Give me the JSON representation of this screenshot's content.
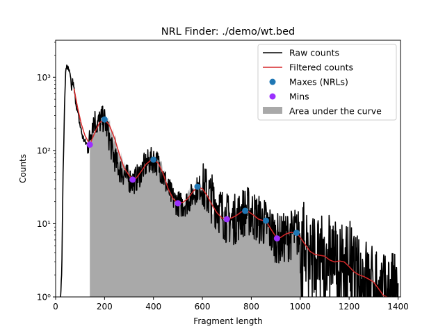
{
  "chart_data": {
    "type": "line",
    "title": "NRL Finder: ./demo/wt.bed",
    "xlabel": "Fragment length",
    "ylabel": "Counts",
    "xlim": [
      0,
      1410
    ],
    "ylim": [
      1,
      3200
    ],
    "yscale": "log",
    "grid": false,
    "legend_position": "top-right",
    "xticks": [
      0,
      200,
      400,
      600,
      800,
      1000,
      1200,
      1400
    ],
    "yticks": [
      {
        "value": 1,
        "label": "10⁰"
      },
      {
        "value": 10,
        "label": "10¹"
      },
      {
        "value": 100,
        "label": "10²"
      },
      {
        "value": 1000,
        "label": "10³"
      }
    ],
    "legend": [
      {
        "label": "Raw counts",
        "kind": "line",
        "color": "#000000"
      },
      {
        "label": "Filtered counts",
        "kind": "line",
        "color": "#d62728"
      },
      {
        "label": "Maxes (NRLs)",
        "kind": "marker",
        "color": "#1f77b4"
      },
      {
        "label": "Mins",
        "kind": "marker",
        "color": "#9b30ff"
      },
      {
        "label": "Area under the curve",
        "kind": "patch",
        "color": "#a9a9a9"
      }
    ],
    "raw_counts": {
      "name": "Raw counts",
      "color": "#000000",
      "x": [
        20,
        25,
        30,
        35,
        40,
        45,
        50,
        55,
        60,
        65,
        70,
        80,
        90,
        100,
        110,
        120,
        130,
        140,
        150,
        160,
        170,
        180,
        190,
        200,
        210,
        220,
        230,
        240,
        260,
        280,
        300,
        320,
        340,
        360,
        380,
        400,
        420,
        440,
        460,
        480,
        500,
        520,
        540,
        560,
        580,
        600,
        620,
        640,
        660,
        680,
        700,
        720,
        740,
        760,
        780,
        800,
        820,
        840,
        860,
        880,
        900,
        920,
        940,
        960,
        980,
        1000,
        1020,
        1040,
        1060,
        1080,
        1100,
        1120,
        1140,
        1160,
        1180,
        1200,
        1220,
        1240,
        1260,
        1280,
        1300,
        1320,
        1340,
        1350,
        1360,
        1380,
        1400
      ],
      "values": [
        1,
        2,
        40,
        250,
        1000,
        1500,
        1300,
        1200,
        1000,
        700,
        900,
        520,
        330,
        220,
        155,
        130,
        120,
        140,
        240,
        260,
        230,
        250,
        270,
        260,
        200,
        140,
        100,
        80,
        55,
        48,
        40,
        38,
        45,
        60,
        70,
        75,
        65,
        45,
        30,
        22,
        19,
        18,
        20,
        25,
        30,
        32,
        26,
        22,
        18,
        14,
        12,
        11,
        12,
        14,
        15,
        14,
        12,
        11,
        10,
        8,
        6.5,
        6,
        6.5,
        7,
        7.5,
        7,
        5.5,
        4.5,
        4,
        3.5,
        4,
        4.5,
        3.5,
        2.5,
        3,
        3.5,
        2.5,
        1.8,
        2.2,
        1.6,
        1.5,
        1.5,
        1.2,
        1,
        1.3,
        1.2,
        1
      ]
    },
    "filtered_counts": {
      "name": "Filtered counts",
      "color": "#d62728",
      "x": [
        75,
        90,
        105,
        120,
        140,
        160,
        180,
        200,
        220,
        240,
        260,
        280,
        300,
        315,
        330,
        350,
        370,
        390,
        400,
        420,
        440,
        460,
        480,
        500,
        520,
        540,
        560,
        580,
        600,
        620,
        640,
        660,
        680,
        700,
        720,
        740,
        760,
        775,
        790,
        810,
        830,
        850,
        860,
        875,
        890,
        905,
        920,
        940,
        960,
        985,
        1000,
        1020,
        1040,
        1060,
        1080,
        1100,
        1120,
        1140,
        1160,
        1180,
        1200,
        1220,
        1240,
        1260,
        1280,
        1300,
        1320,
        1340,
        1355
      ],
      "values": [
        700,
        380,
        230,
        160,
        120,
        175,
        240,
        265,
        220,
        150,
        90,
        58,
        46,
        40,
        42,
        52,
        65,
        74,
        75,
        67,
        48,
        30,
        22,
        19,
        19.5,
        22,
        27,
        32,
        30,
        24,
        18,
        14,
        12,
        11.5,
        12,
        13,
        14.5,
        15,
        14.5,
        13,
        11.5,
        11,
        11,
        9,
        7.5,
        6.3,
        6.5,
        7.2,
        7.6,
        7.5,
        6.5,
        5.2,
        4.2,
        3.8,
        3.7,
        3.6,
        3.2,
        3,
        3.1,
        3,
        2.6,
        2.2,
        2,
        1.9,
        1.75,
        1.6,
        1.3,
        1.05,
        1
      ]
    },
    "maxes": {
      "name": "Maxes (NRLs)",
      "color": "#1f77b4",
      "x": [
        200,
        400,
        580,
        775,
        860,
        985
      ],
      "values": [
        265,
        75,
        32,
        15,
        11,
        7.5
      ]
    },
    "mins": {
      "name": "Mins",
      "color": "#9b30ff",
      "x": [
        140,
        315,
        500,
        700,
        905
      ],
      "values": [
        120,
        40,
        19,
        11.5,
        6.3
      ]
    },
    "area_under_curve": {
      "name": "Area under the curve",
      "color": "#a9a9a9",
      "x_start": 140,
      "x_end": 1000
    }
  }
}
